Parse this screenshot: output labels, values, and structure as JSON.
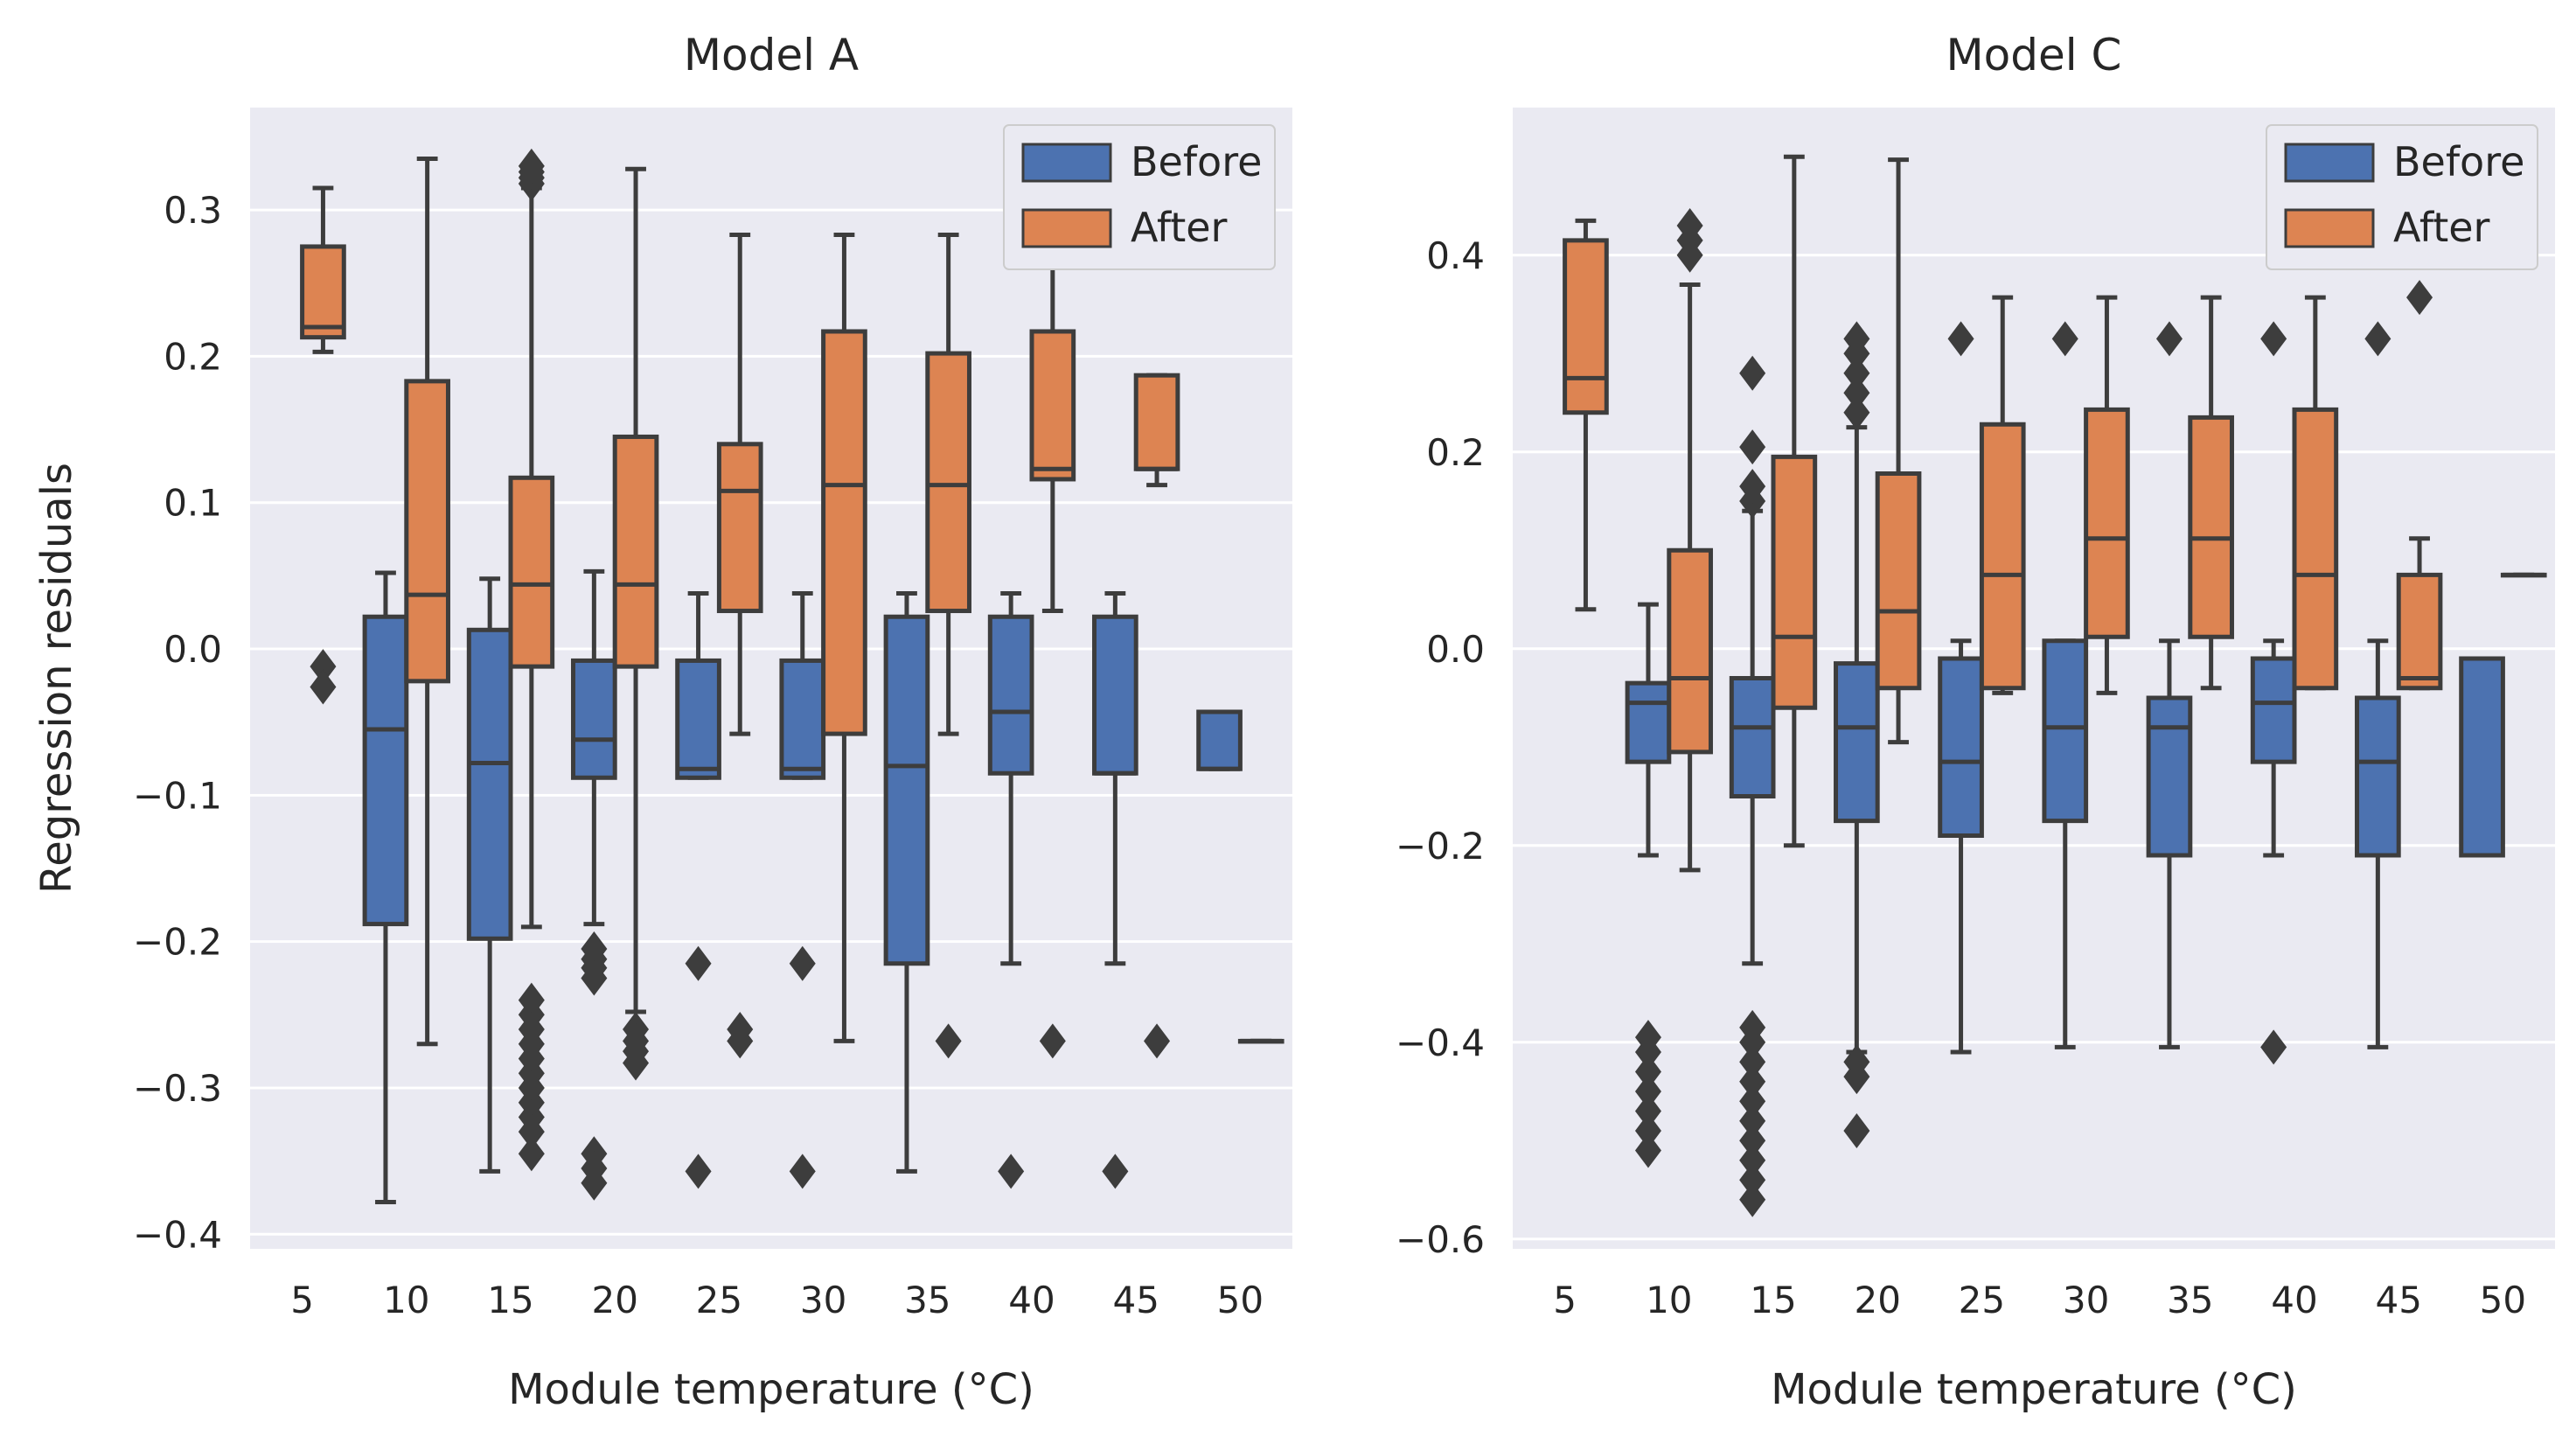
{
  "chart_data": [
    {
      "type": "box",
      "title": "Model A",
      "xlabel": "Module temperature (°C)",
      "ylabel": "Regression residuals",
      "categories": [
        "5",
        "10",
        "15",
        "20",
        "25",
        "30",
        "35",
        "40",
        "45",
        "50"
      ],
      "ylim": [
        -0.41,
        0.37
      ],
      "yticks": [
        -0.4,
        -0.3,
        -0.2,
        -0.1,
        0.0,
        0.1,
        0.2,
        0.3
      ],
      "ytick_labels": [
        "−0.4",
        "−0.3",
        "−0.2",
        "−0.1",
        "0.0",
        "0.1",
        "0.2",
        "0.3"
      ],
      "grid": true,
      "legend_position": "top-right",
      "series": [
        {
          "name": "Before",
          "color": "#4c72b0",
          "boxes": [
            null,
            {
              "whislo": -0.378,
              "q1": -0.188,
              "med": -0.055,
              "q3": 0.022,
              "whishi": 0.052,
              "fliers": []
            },
            {
              "whislo": -0.357,
              "q1": -0.198,
              "med": -0.078,
              "q3": 0.013,
              "whishi": 0.048,
              "fliers": []
            },
            {
              "whislo": -0.188,
              "q1": -0.088,
              "med": -0.062,
              "q3": -0.008,
              "whishi": 0.053,
              "fliers": [
                -0.205,
                -0.212,
                -0.218,
                -0.225,
                -0.345,
                -0.355,
                -0.365
              ]
            },
            {
              "whislo": -0.088,
              "q1": -0.088,
              "med": -0.082,
              "q3": -0.008,
              "whishi": 0.038,
              "fliers": [
                -0.215,
                -0.357
              ]
            },
            {
              "whislo": -0.088,
              "q1": -0.088,
              "med": -0.082,
              "q3": -0.008,
              "whishi": 0.038,
              "fliers": [
                -0.215,
                -0.357
              ]
            },
            {
              "whislo": -0.357,
              "q1": -0.215,
              "med": -0.08,
              "q3": 0.022,
              "whishi": 0.038,
              "fliers": []
            },
            {
              "whislo": -0.215,
              "q1": -0.085,
              "med": -0.043,
              "q3": 0.022,
              "whishi": 0.038,
              "fliers": [
                -0.357
              ]
            },
            {
              "whislo": -0.215,
              "q1": -0.085,
              "med": -0.085,
              "q3": 0.022,
              "whishi": 0.038,
              "fliers": [
                -0.357
              ]
            },
            {
              "whislo": -0.082,
              "q1": -0.082,
              "med": -0.082,
              "q3": -0.043,
              "whishi": -0.043,
              "fliers": []
            }
          ]
        },
        {
          "name": "After",
          "color": "#dd8452",
          "boxes": [
            {
              "whislo": 0.203,
              "q1": 0.213,
              "med": 0.22,
              "q3": 0.275,
              "whishi": 0.315,
              "fliers": [
                -0.012,
                -0.026
              ]
            },
            {
              "whislo": -0.27,
              "q1": -0.022,
              "med": 0.037,
              "q3": 0.183,
              "whishi": 0.335,
              "fliers": []
            },
            {
              "whislo": -0.19,
              "q1": -0.012,
              "med": 0.044,
              "q3": 0.117,
              "whishi": 0.315,
              "fliers": [
                0.318,
                0.322,
                0.326,
                0.33,
                -0.24,
                -0.25,
                -0.26,
                -0.27,
                -0.28,
                -0.29,
                -0.3,
                -0.31,
                -0.32,
                -0.33,
                -0.345
              ]
            },
            {
              "whislo": -0.248,
              "q1": -0.012,
              "med": 0.044,
              "q3": 0.145,
              "whishi": 0.328,
              "fliers": [
                -0.26,
                -0.268,
                -0.275,
                -0.283
              ]
            },
            {
              "whislo": -0.058,
              "q1": 0.026,
              "med": 0.108,
              "q3": 0.14,
              "whishi": 0.283,
              "fliers": [
                -0.26,
                -0.268
              ]
            },
            {
              "whislo": -0.268,
              "q1": -0.058,
              "med": 0.112,
              "q3": 0.217,
              "whishi": 0.283,
              "fliers": []
            },
            {
              "whislo": -0.058,
              "q1": 0.026,
              "med": 0.112,
              "q3": 0.202,
              "whishi": 0.283,
              "fliers": [
                -0.268
              ]
            },
            {
              "whislo": 0.026,
              "q1": 0.116,
              "med": 0.123,
              "q3": 0.217,
              "whishi": 0.275,
              "fliers": [
                -0.268
              ]
            },
            {
              "whislo": 0.112,
              "q1": 0.123,
              "med": 0.123,
              "q3": 0.187,
              "whishi": 0.187,
              "fliers": [
                -0.268,
                0.283
              ]
            },
            {
              "whislo": -0.268,
              "q1": -0.268,
              "med": -0.268,
              "q3": -0.268,
              "whishi": -0.268,
              "fliers": []
            }
          ]
        }
      ]
    },
    {
      "type": "box",
      "title": "Model C",
      "xlabel": "Module temperature (°C)",
      "ylabel": "",
      "categories": [
        "5",
        "10",
        "15",
        "20",
        "25",
        "30",
        "35",
        "40",
        "45",
        "50"
      ],
      "ylim": [
        -0.61,
        0.55
      ],
      "yticks": [
        -0.6,
        -0.4,
        -0.2,
        0.0,
        0.2,
        0.4
      ],
      "ytick_labels": [
        "−0.6",
        "−0.4",
        "−0.2",
        "0.0",
        "0.2",
        "0.4"
      ],
      "grid": true,
      "legend_position": "top-right",
      "series": [
        {
          "name": "Before",
          "color": "#4c72b0",
          "boxes": [
            null,
            {
              "whislo": -0.21,
              "q1": -0.115,
              "med": -0.055,
              "q3": -0.035,
              "whishi": 0.045,
              "fliers": [
                -0.395,
                -0.41,
                -0.43,
                -0.45,
                -0.47,
                -0.49,
                -0.51
              ]
            },
            {
              "whislo": -0.32,
              "q1": -0.15,
              "med": -0.08,
              "q3": -0.03,
              "whishi": 0.14,
              "fliers": [
                0.15,
                0.165,
                0.205,
                0.28,
                -0.385,
                -0.4,
                -0.42,
                -0.44,
                -0.46,
                -0.48,
                -0.5,
                -0.52,
                -0.54,
                -0.56
              ]
            },
            {
              "whislo": -0.41,
              "q1": -0.175,
              "med": -0.08,
              "q3": -0.015,
              "whishi": 0.225,
              "fliers": [
                0.24,
                0.26,
                0.28,
                0.3,
                0.315,
                -0.42,
                -0.435,
                -0.49
              ]
            },
            {
              "whislo": -0.41,
              "q1": -0.19,
              "med": -0.115,
              "q3": -0.01,
              "whishi": 0.008,
              "fliers": [
                0.315
              ]
            },
            {
              "whislo": -0.405,
              "q1": -0.175,
              "med": -0.08,
              "q3": 0.008,
              "whishi": 0.008,
              "fliers": [
                0.315
              ]
            },
            {
              "whislo": -0.405,
              "q1": -0.21,
              "med": -0.08,
              "q3": -0.05,
              "whishi": 0.008,
              "fliers": [
                0.315
              ]
            },
            {
              "whislo": -0.21,
              "q1": -0.115,
              "med": -0.055,
              "q3": -0.01,
              "whishi": 0.008,
              "fliers": [
                0.315,
                -0.405
              ]
            },
            {
              "whislo": -0.405,
              "q1": -0.21,
              "med": -0.115,
              "q3": -0.05,
              "whishi": 0.008,
              "fliers": [
                0.315
              ]
            },
            {
              "whislo": -0.21,
              "q1": -0.21,
              "med": -0.21,
              "q3": -0.01,
              "whishi": -0.01,
              "fliers": []
            }
          ]
        },
        {
          "name": "After",
          "color": "#dd8452",
          "boxes": [
            {
              "whislo": 0.04,
              "q1": 0.24,
              "med": 0.275,
              "q3": 0.415,
              "whishi": 0.435,
              "fliers": []
            },
            {
              "whislo": -0.225,
              "q1": -0.105,
              "med": -0.03,
              "q3": 0.1,
              "whishi": 0.37,
              "fliers": [
                0.4,
                0.415,
                0.43
              ]
            },
            {
              "whislo": -0.2,
              "q1": -0.06,
              "med": 0.012,
              "q3": 0.195,
              "whishi": 0.5,
              "fliers": []
            },
            {
              "whislo": -0.095,
              "q1": -0.04,
              "med": 0.038,
              "q3": 0.178,
              "whishi": 0.497,
              "fliers": []
            },
            {
              "whislo": -0.045,
              "q1": -0.04,
              "med": 0.075,
              "q3": 0.228,
              "whishi": 0.357,
              "fliers": []
            },
            {
              "whislo": -0.045,
              "q1": 0.012,
              "med": 0.112,
              "q3": 0.243,
              "whishi": 0.357,
              "fliers": []
            },
            {
              "whislo": -0.04,
              "q1": 0.012,
              "med": 0.112,
              "q3": 0.235,
              "whishi": 0.357,
              "fliers": []
            },
            {
              "whislo": -0.04,
              "q1": -0.04,
              "med": 0.075,
              "q3": 0.243,
              "whishi": 0.357,
              "fliers": []
            },
            {
              "whislo": -0.04,
              "q1": -0.04,
              "med": -0.03,
              "q3": 0.075,
              "whishi": 0.112,
              "fliers": [
                0.357
              ]
            },
            {
              "whislo": 0.075,
              "q1": 0.075,
              "med": 0.075,
              "q3": 0.075,
              "whishi": 0.075,
              "fliers": []
            }
          ]
        }
      ]
    }
  ]
}
